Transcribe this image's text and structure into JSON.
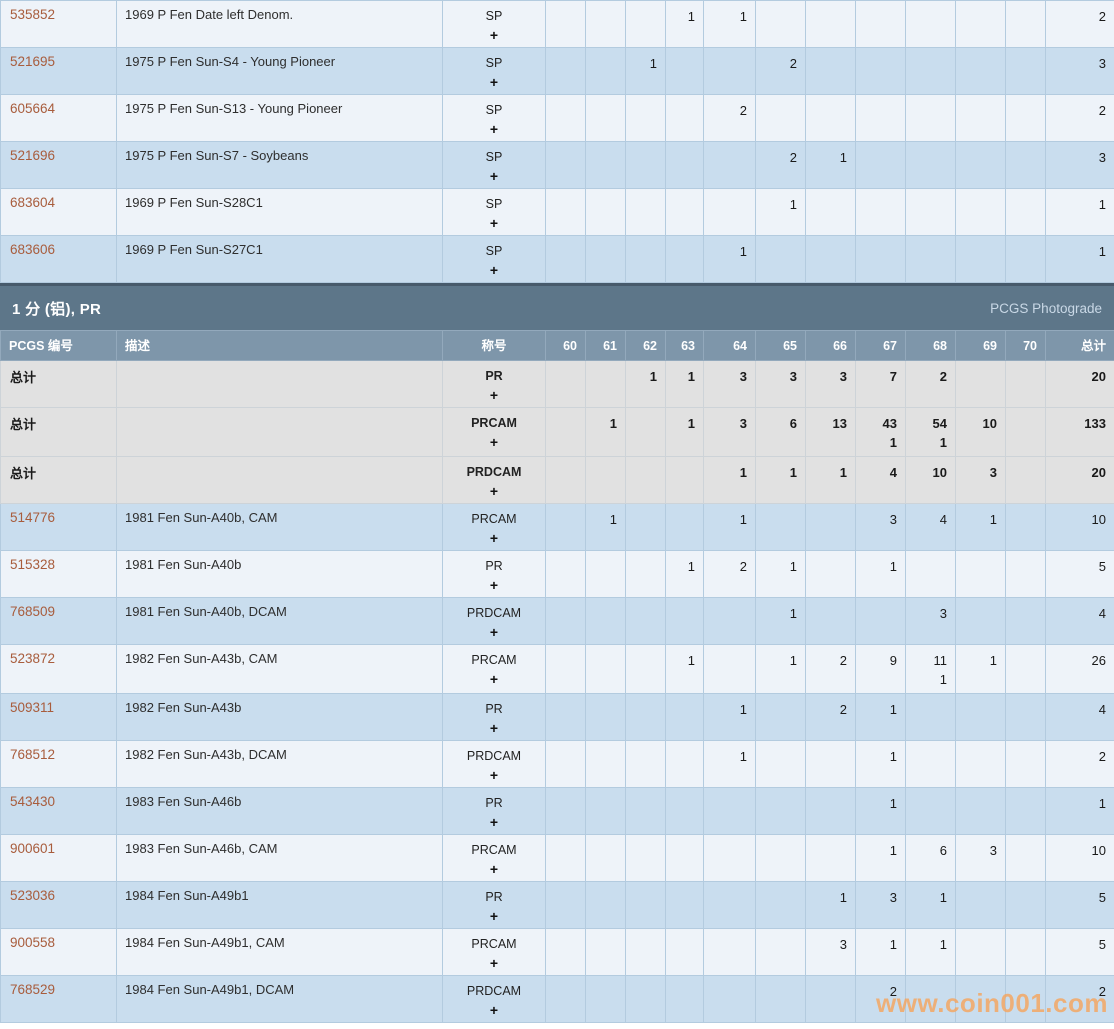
{
  "watermark": "www.coin001.com",
  "colors": {
    "section_bar": "#5d7689",
    "column_header": "#7e96aa",
    "row_light": "#eef3f9",
    "row_alt": "#c9ddee",
    "row_total": "#e1e1e1",
    "pcgs_number_link": "#a85c3c",
    "watermark_orange": "#f5a55f"
  },
  "grade_columns": [
    "60",
    "61",
    "62",
    "63",
    "64",
    "65",
    "66",
    "67",
    "68",
    "69",
    "70"
  ],
  "top_section": {
    "rows": [
      {
        "pcgs": "535852",
        "desc": "1969 P Fen Date left Denom.",
        "desig": "SP",
        "plus": "+",
        "cells": {
          "63": 1,
          "64": 1
        },
        "total": 2,
        "shade": "light"
      },
      {
        "pcgs": "521695",
        "desc": "1975 P Fen Sun-S4 - Young Pioneer",
        "desig": "SP",
        "plus": "+",
        "cells": {
          "62": 1,
          "65": 2
        },
        "total": 3,
        "shade": "alt"
      },
      {
        "pcgs": "605664",
        "desc": "1975 P Fen Sun-S13 - Young Pioneer",
        "desig": "SP",
        "plus": "+",
        "cells": {
          "64": 2
        },
        "total": 2,
        "shade": "light"
      },
      {
        "pcgs": "521696",
        "desc": "1975 P Fen Sun-S7 - Soybeans",
        "desig": "SP",
        "plus": "+",
        "cells": {
          "65": 2,
          "66": 1
        },
        "total": 3,
        "shade": "alt"
      },
      {
        "pcgs": "683604",
        "desc": "1969 P Fen Sun-S28C1",
        "desig": "SP",
        "plus": "+",
        "cells": {
          "65": 1
        },
        "total": 1,
        "shade": "light"
      },
      {
        "pcgs": "683606",
        "desc": "1969 P Fen Sun-S27C1",
        "desig": "SP",
        "plus": "+",
        "cells": {
          "64": 1
        },
        "total": 1,
        "shade": "alt"
      }
    ]
  },
  "section": {
    "title": "1 分 (铝), PR",
    "link": "PCGS Photograde",
    "headers": {
      "pcgs": "PCGS 编号",
      "desc": "描述",
      "desig": "称号",
      "total": "总计"
    },
    "total_label": "总计",
    "total_rows": [
      {
        "desig": "PR",
        "plus": "+",
        "cells": {
          "62": 1,
          "63": 1,
          "64": 3,
          "65": 3,
          "66": 3,
          "67": 7,
          "68": 2
        },
        "total": 20
      },
      {
        "desig": "PRCAM",
        "plus": "+",
        "cells": {
          "61": 1,
          "63": 1,
          "64": 3,
          "65": 6,
          "66": 13,
          "67": [
            43,
            1
          ],
          "68": [
            54,
            1
          ],
          "69": 10
        },
        "total": 133
      },
      {
        "desig": "PRDCAM",
        "plus": "+",
        "cells": {
          "64": 1,
          "65": 1,
          "66": 1,
          "67": 4,
          "68": 10,
          "69": 3
        },
        "total": 20
      }
    ],
    "rows": [
      {
        "pcgs": "514776",
        "desc": "1981 Fen Sun-A40b, CAM",
        "desig": "PRCAM",
        "plus": "+",
        "cells": {
          "61": 1,
          "64": 1,
          "67": 3,
          "68": 4,
          "69": 1
        },
        "total": 10,
        "shade": "alt"
      },
      {
        "pcgs": "515328",
        "desc": "1981 Fen Sun-A40b",
        "desig": "PR",
        "plus": "+",
        "cells": {
          "63": 1,
          "64": 2,
          "65": 1,
          "67": 1
        },
        "total": 5,
        "shade": "light"
      },
      {
        "pcgs": "768509",
        "desc": "1981 Fen Sun-A40b, DCAM",
        "desig": "PRDCAM",
        "plus": "+",
        "cells": {
          "65": 1,
          "68": 3
        },
        "total": 4,
        "shade": "alt"
      },
      {
        "pcgs": "523872",
        "desc": "1982 Fen Sun-A43b, CAM",
        "desig": "PRCAM",
        "plus": "+",
        "cells": {
          "63": 1,
          "65": 1,
          "66": 2,
          "67": 9,
          "68": [
            11,
            1
          ],
          "69": 1
        },
        "total": 26,
        "shade": "light"
      },
      {
        "pcgs": "509311",
        "desc": "1982 Fen Sun-A43b",
        "desig": "PR",
        "plus": "+",
        "cells": {
          "64": 1,
          "66": 2,
          "67": 1
        },
        "total": 4,
        "shade": "alt"
      },
      {
        "pcgs": "768512",
        "desc": "1982 Fen Sun-A43b, DCAM",
        "desig": "PRDCAM",
        "plus": "+",
        "cells": {
          "64": 1,
          "67": 1
        },
        "total": 2,
        "shade": "light"
      },
      {
        "pcgs": "543430",
        "desc": "1983 Fen Sun-A46b",
        "desig": "PR",
        "plus": "+",
        "cells": {
          "67": 1
        },
        "total": 1,
        "shade": "alt"
      },
      {
        "pcgs": "900601",
        "desc": "1983 Fen Sun-A46b, CAM",
        "desig": "PRCAM",
        "plus": "+",
        "cells": {
          "67": 1,
          "68": 6,
          "69": 3
        },
        "total": 10,
        "shade": "light"
      },
      {
        "pcgs": "523036",
        "desc": "1984 Fen Sun-A49b1",
        "desig": "PR",
        "plus": "+",
        "cells": {
          "66": 1,
          "67": 3,
          "68": 1
        },
        "total": 5,
        "shade": "alt"
      },
      {
        "pcgs": "900558",
        "desc": "1984 Fen Sun-A49b1, CAM",
        "desig": "PRCAM",
        "plus": "+",
        "cells": {
          "66": 3,
          "67": 1,
          "68": 1
        },
        "total": 5,
        "shade": "light"
      },
      {
        "pcgs": "768529",
        "desc": "1984 Fen Sun-A49b1, DCAM",
        "desig": "PRDCAM",
        "plus": "+",
        "cells": {
          "67": 2
        },
        "total": 2,
        "shade": "alt"
      }
    ]
  }
}
